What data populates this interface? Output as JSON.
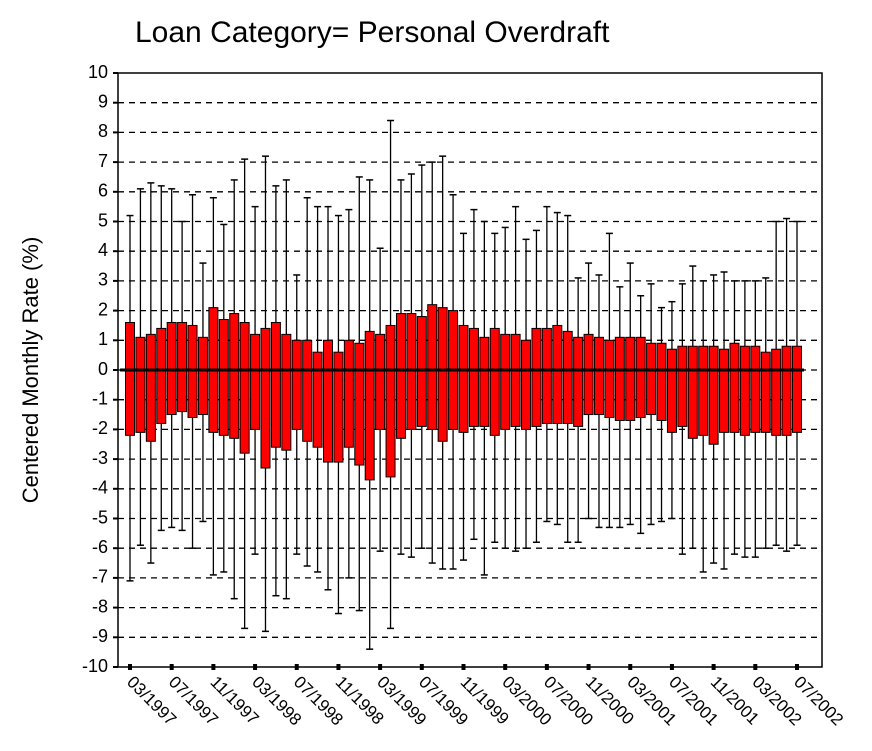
{
  "chart_data": {
    "type": "box",
    "title": "Loan Category= Personal Overdraft",
    "ylabel": "Centered Monthly Rate (%)",
    "categories": [
      "03/1997",
      null,
      null,
      null,
      "07/1997",
      null,
      null,
      null,
      "11/1997",
      null,
      null,
      null,
      "03/1998",
      null,
      null,
      null,
      "07/1998",
      null,
      null,
      null,
      "11/1998",
      null,
      null,
      null,
      "03/1999",
      null,
      null,
      null,
      "07/1999",
      null,
      null,
      null,
      "11/1999",
      null,
      null,
      null,
      "03/2000",
      null,
      null,
      null,
      "07/2000",
      null,
      null,
      null,
      "11/2000",
      null,
      null,
      null,
      "03/2001",
      null,
      null,
      null,
      "07/2001",
      null,
      null,
      null,
      "11/2001",
      null,
      null,
      null,
      "03/2002",
      null,
      null,
      null,
      "07/2002"
    ],
    "whisker_high": [
      5.2,
      6.1,
      6.3,
      6.2,
      6.1,
      5.0,
      5.9,
      3.6,
      5.8,
      4.9,
      6.4,
      7.1,
      5.5,
      7.2,
      6.2,
      6.4,
      3.2,
      5.8,
      5.5,
      5.5,
      5.2,
      5.4,
      6.5,
      6.4,
      4.1,
      8.4,
      6.4,
      6.6,
      6.9,
      7.0,
      7.2,
      5.9,
      4.6,
      5.4,
      5.0,
      4.6,
      4.8,
      5.5,
      4.4,
      4.7,
      5.5,
      5.3,
      5.2,
      3.1,
      3.6,
      3.2,
      4.6,
      2.8,
      3.6,
      2.5,
      2.9,
      2.1,
      2.3,
      2.9,
      3.5,
      3.0,
      3.2,
      3.3,
      3.0,
      3.0,
      3.0,
      3.1,
      5.0,
      5.1,
      5.0
    ],
    "q3": [
      1.6,
      1.1,
      1.2,
      1.4,
      1.6,
      1.6,
      1.5,
      1.1,
      2.1,
      1.7,
      1.9,
      1.6,
      1.2,
      1.4,
      1.6,
      1.2,
      1.0,
      1.0,
      0.6,
      1.0,
      0.6,
      1.0,
      0.9,
      1.3,
      1.2,
      1.5,
      1.9,
      1.9,
      1.8,
      2.2,
      2.1,
      2.0,
      1.5,
      1.4,
      1.1,
      1.4,
      1.2,
      1.2,
      1.0,
      1.4,
      1.4,
      1.5,
      1.3,
      1.1,
      1.2,
      1.1,
      1.0,
      1.1,
      1.1,
      1.1,
      0.9,
      0.9,
      0.7,
      0.8,
      0.8,
      0.8,
      0.8,
      0.7,
      0.9,
      0.8,
      0.8,
      0.6,
      0.7,
      0.8,
      0.8
    ],
    "q1": [
      -2.2,
      -2.1,
      -2.4,
      -1.8,
      -1.5,
      -1.4,
      -1.6,
      -1.5,
      -2.1,
      -2.2,
      -2.3,
      -2.8,
      -2.0,
      -3.3,
      -2.6,
      -2.7,
      -2.0,
      -2.4,
      -2.6,
      -3.1,
      -3.1,
      -2.6,
      -3.2,
      -3.7,
      -2.0,
      -3.6,
      -2.3,
      -2.0,
      -1.9,
      -2.0,
      -2.4,
      -2.0,
      -2.1,
      -1.9,
      -1.9,
      -2.2,
      -2.0,
      -1.9,
      -2.0,
      -1.9,
      -1.8,
      -1.8,
      -1.8,
      -1.9,
      -1.5,
      -1.5,
      -1.6,
      -1.7,
      -1.7,
      -1.6,
      -1.5,
      -1.7,
      -2.1,
      -1.9,
      -2.3,
      -2.2,
      -2.5,
      -2.1,
      -2.1,
      -2.2,
      -2.1,
      -2.1,
      -2.2,
      -2.2,
      -2.1
    ],
    "whisker_low": [
      -7.1,
      -5.9,
      -6.5,
      -5.4,
      -5.3,
      -5.4,
      -6.0,
      -5.1,
      -6.9,
      -6.8,
      -7.7,
      -8.7,
      -6.2,
      -8.8,
      -7.6,
      -7.7,
      -6.2,
      -6.6,
      -6.8,
      -7.4,
      -8.2,
      -7.0,
      -8.1,
      -9.4,
      -6.1,
      -8.7,
      -6.2,
      -6.3,
      -6.0,
      -6.5,
      -6.7,
      -6.7,
      -6.4,
      -5.7,
      -6.9,
      -5.8,
      -6.0,
      -6.1,
      -6.0,
      -5.8,
      -5.1,
      -5.2,
      -5.8,
      -5.8,
      -5.0,
      -5.3,
      -5.3,
      -5.3,
      -5.2,
      -5.5,
      -5.2,
      -5.1,
      -5.0,
      -6.2,
      -6.0,
      -6.8,
      -6.5,
      -6.7,
      -6.2,
      -6.3,
      -6.3,
      -6.0,
      -5.9,
      -6.1,
      -5.9
    ],
    "color": "#ff0000",
    "ylim": [
      -10,
      10
    ],
    "yticks": [
      -10,
      -9,
      -8,
      -7,
      -6,
      -5,
      -4,
      -3,
      -2,
      -1,
      0,
      1,
      2,
      3,
      4,
      5,
      6,
      7,
      8,
      9,
      10
    ],
    "grid": true
  }
}
